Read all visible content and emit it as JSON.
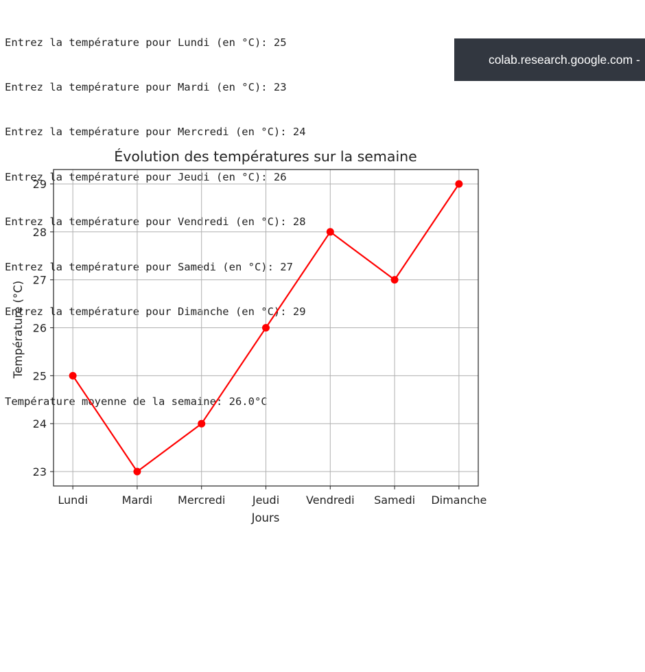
{
  "console": {
    "lines": [
      "Entrez la température pour Lundi (en °C): 25",
      "Entrez la température pour Mardi (en °C): 23",
      "Entrez la température pour Mercredi (en °C): 24",
      "Entrez la température pour Jeudi (en °C): 26",
      "Entrez la température pour Vendredi (en °C): 28",
      "Entrez la température pour Samedi (en °C): 27",
      "Entrez la température pour Dimanche (en °C): 29"
    ],
    "average_line": "Température moyenne de la semaine: 26.0°C"
  },
  "toast": {
    "text": "colab.research.google.com -"
  },
  "chart_data": {
    "type": "line",
    "title": "Évolution des températures sur la semaine",
    "xlabel": "Jours",
    "ylabel": "Température (°C)",
    "categories": [
      "Lundi",
      "Mardi",
      "Mercredi",
      "Jeudi",
      "Vendredi",
      "Samedi",
      "Dimanche"
    ],
    "series": [
      {
        "values": [
          25,
          23,
          24,
          26,
          28,
          27,
          29
        ],
        "color": "#ff0000",
        "marker": "o"
      }
    ],
    "yticks": [
      23,
      24,
      25,
      26,
      27,
      28,
      29
    ],
    "grid": true
  }
}
